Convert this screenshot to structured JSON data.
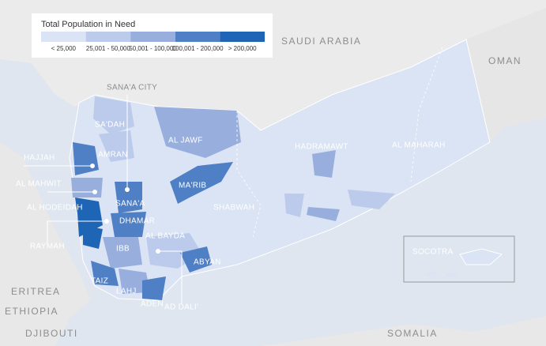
{
  "legend": {
    "title": "Total Population in Need",
    "items": [
      {
        "label": "< 25,000",
        "color": "#dbe4f4"
      },
      {
        "label": "25,001 - 50,000",
        "color": "#bccbeb"
      },
      {
        "label": "50,001 - 100,000",
        "color": "#98afde"
      },
      {
        "label": "100,001 - 200,000",
        "color": "#4f7fc4"
      },
      {
        "label": "> 200,000",
        "color": "#1f65b5"
      }
    ]
  },
  "labels": {
    "countries": [
      "SAUDI ARABIA",
      "OMAN",
      "ERITREA",
      "ETHIOPIA",
      "DJIBOUTI",
      "SOMALIA"
    ],
    "governorates": [
      "SANA'A CITY",
      "SA'DAH",
      "AMRAN",
      "HAJJAH",
      "AL MAHWIT",
      "AL HODEIDAH",
      "RAYMAH",
      "SANA'A",
      "DHAMAR",
      "AL BAYDA",
      "IBB",
      "TAIZ",
      "LAHJ",
      "ADEN",
      "AD DALI'",
      "ABYAN",
      "AL JAWF",
      "MA'RIB",
      "SHABWAH",
      "HADRAMAWT",
      "AL MAHARAH",
      "SOCOTRA"
    ]
  }
}
